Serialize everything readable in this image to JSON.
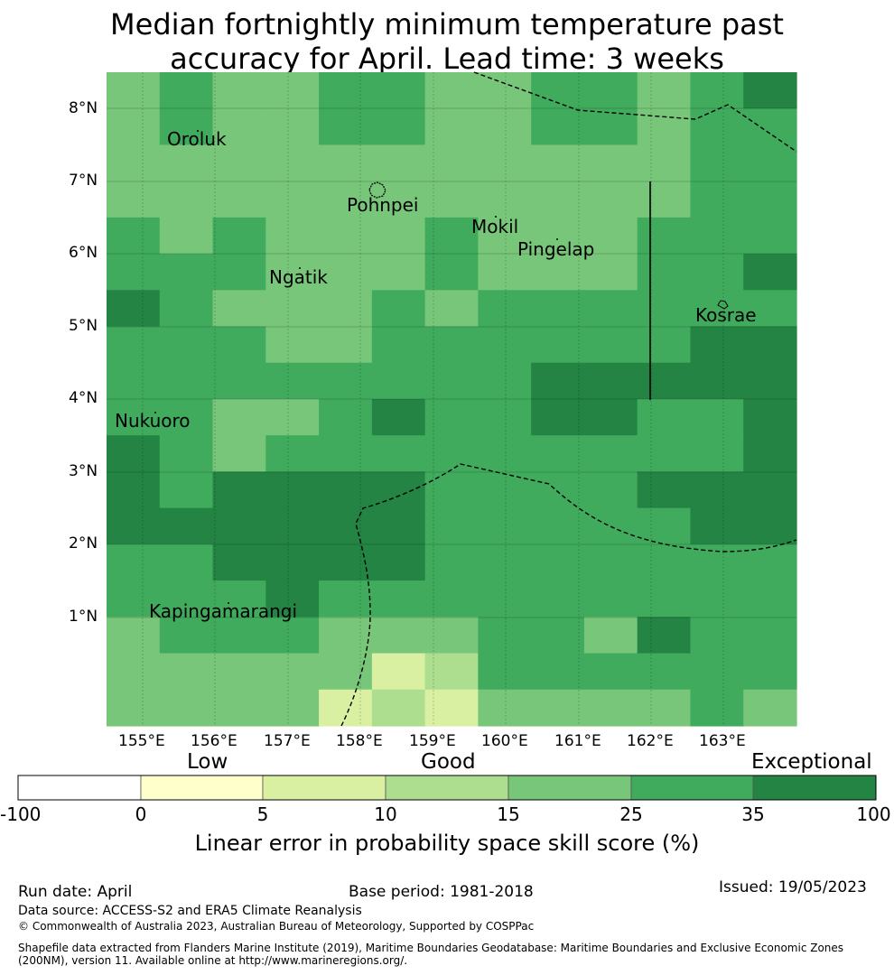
{
  "title_line1": "Median fortnightly minimum temperature past",
  "title_line2": "accuracy for April. Lead time: 3 weeks",
  "colors": {
    "0": "#ffffff",
    "1": "#ffffcc",
    "2": "#d9f0a3",
    "3": "#addd8e",
    "4": "#78c679",
    "5": "#41ab5d",
    "6": "#238443"
  },
  "map": {
    "lat_labels": [
      "8°N",
      "7°N",
      "6°N",
      "5°N",
      "4°N",
      "3°N",
      "2°N",
      "1°N"
    ],
    "lon_labels": [
      "155°E",
      "156°E",
      "157°E",
      "158°E",
      "159°E",
      "160°E",
      "161°E",
      "162°E",
      "163°E"
    ],
    "places": [
      "Oroluk",
      "Pohnpei",
      "Mokil",
      "Pingelap",
      "Ngatik",
      "Kosrae",
      "Nukuoro",
      "Kapingamarangi"
    ],
    "grid_cols_note": "",
    "cells": [
      [
        4,
        5,
        4,
        4,
        5,
        5,
        4,
        4,
        5,
        5,
        4,
        5,
        6
      ],
      [
        4,
        5,
        4,
        4,
        5,
        5,
        4,
        4,
        5,
        5,
        4,
        5,
        5
      ],
      [
        4,
        4,
        4,
        4,
        4,
        4,
        4,
        4,
        4,
        4,
        4,
        5,
        5
      ],
      [
        4,
        4,
        4,
        4,
        4,
        4,
        4,
        4,
        4,
        4,
        4,
        5,
        5
      ],
      [
        5,
        4,
        5,
        4,
        4,
        4,
        5,
        4,
        4,
        4,
        5,
        5,
        5
      ],
      [
        5,
        5,
        5,
        4,
        4,
        4,
        5,
        4,
        4,
        4,
        5,
        5,
        6
      ],
      [
        6,
        5,
        4,
        4,
        4,
        5,
        4,
        5,
        5,
        5,
        5,
        5,
        5
      ],
      [
        5,
        5,
        5,
        4,
        4,
        5,
        5,
        5,
        5,
        5,
        5,
        6,
        6
      ],
      [
        5,
        5,
        5,
        5,
        5,
        5,
        5,
        5,
        6,
        6,
        6,
        6,
        6
      ],
      [
        5,
        5,
        4,
        4,
        5,
        6,
        5,
        5,
        6,
        6,
        5,
        5,
        6
      ],
      [
        6,
        5,
        4,
        5,
        5,
        5,
        5,
        5,
        5,
        5,
        5,
        5,
        6
      ],
      [
        6,
        5,
        6,
        6,
        6,
        6,
        5,
        5,
        5,
        5,
        6,
        6,
        6
      ],
      [
        6,
        6,
        6,
        6,
        6,
        6,
        5,
        5,
        5,
        5,
        5,
        6,
        6
      ],
      [
        5,
        5,
        6,
        6,
        6,
        6,
        5,
        5,
        5,
        5,
        5,
        5,
        5
      ],
      [
        5,
        5,
        5,
        6,
        5,
        5,
        5,
        5,
        5,
        5,
        5,
        5,
        5
      ],
      [
        4,
        5,
        5,
        5,
        4,
        4,
        4,
        5,
        5,
        4,
        6,
        5,
        5
      ],
      [
        4,
        4,
        4,
        4,
        4,
        2,
        3,
        5,
        5,
        5,
        5,
        5,
        5
      ],
      [
        4,
        4,
        4,
        4,
        2,
        3,
        2,
        4,
        4,
        4,
        4,
        5,
        4
      ]
    ]
  },
  "legend": {
    "categories": [
      "Low",
      "Good",
      "Exceptional"
    ],
    "ticks": [
      "-100",
      "0",
      "5",
      "10",
      "15",
      "25",
      "35",
      "100"
    ],
    "title": "Linear error in probability space skill score (%)"
  },
  "footer": {
    "run_date": "Run date: April",
    "base_period": "Base period: 1981-2018",
    "issued": "Issued: 19/05/2023",
    "data_source": "Data source: ACCESS-S2 and ERA5 Climate Reanalysis",
    "copyright": "© Commonwealth of Australia 2023, Australian Bureau of Meteorology, Supported by COSPPac",
    "shapefile_line1": "Shapefile data extracted from Flanders Marine Institute (2019), Maritime Boundaries Geodatabase: Maritime Boundaries and Exclusive Economic Zones",
    "shapefile_line2": "(200NM), version 11. Available online at http://www.marineregions.org/."
  }
}
